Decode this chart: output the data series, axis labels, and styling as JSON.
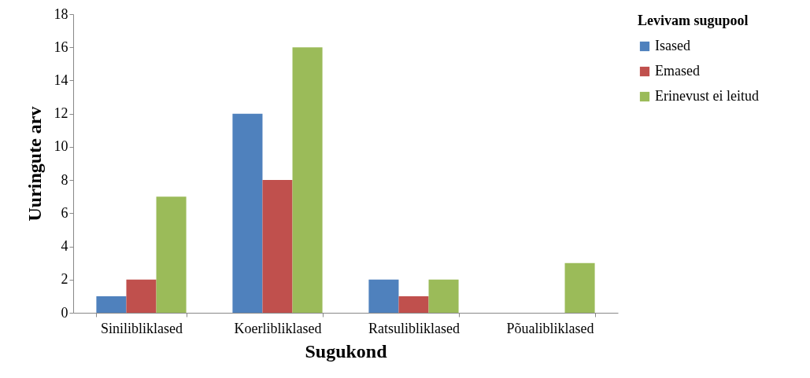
{
  "chart_data": {
    "type": "bar",
    "xlabel": "Sugukond",
    "ylabel": "Uuringute arv",
    "legend_title": "Levivam sugupool",
    "categories": [
      "Sinilibliklased",
      "Koerlibliklased",
      "Ratsulibliklased",
      "Põualibliklased"
    ],
    "series": [
      {
        "name": "Isased",
        "color": "#4f81bd",
        "values": [
          1,
          12,
          2,
          0
        ]
      },
      {
        "name": "Emased",
        "color": "#c0504d",
        "values": [
          2,
          8,
          1,
          0
        ]
      },
      {
        "name": "Erinevust ei leitud",
        "color": "#9bbb59",
        "values": [
          7,
          16,
          2,
          3
        ]
      }
    ],
    "ylim": [
      0,
      18
    ],
    "yticks": [
      0,
      2,
      4,
      6,
      8,
      10,
      12,
      14,
      16,
      18
    ],
    "grid": false,
    "legend": "right"
  }
}
